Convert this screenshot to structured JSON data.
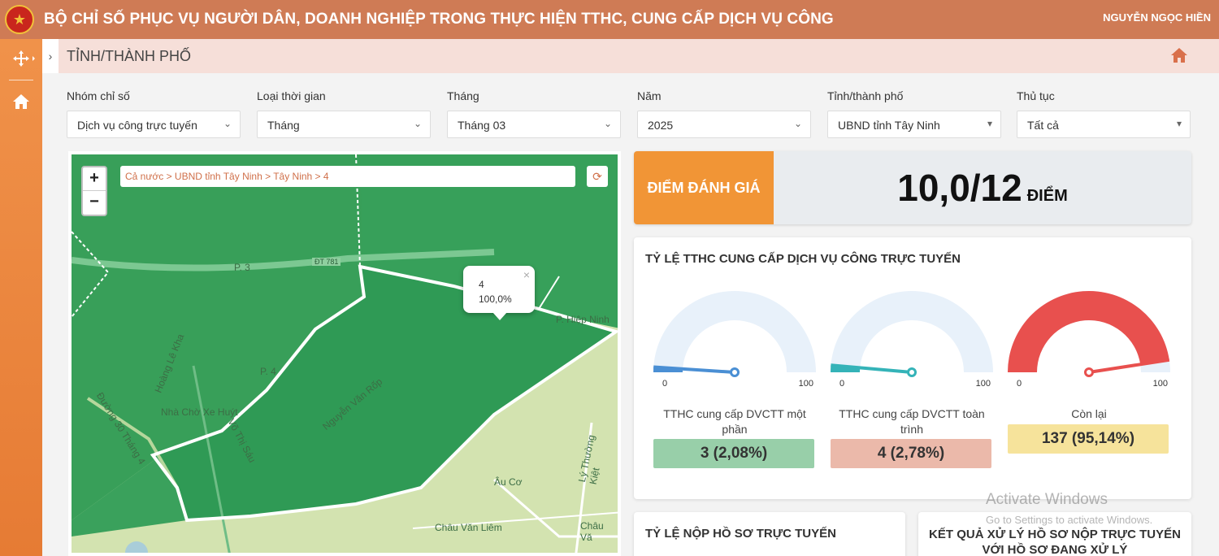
{
  "header": {
    "title": "BỘ CHỈ SỐ PHỤC VỤ NGƯỜI DÂN, DOANH NGHIỆP TRONG THỰC HIỆN TTHC, CUNG CẤP DỊCH VỤ CÔNG",
    "user": "NGUYỄN NGỌC HIỀN"
  },
  "breadcrumb": {
    "title": "TỈNH/THÀNH PHỐ"
  },
  "filters": [
    {
      "label": "Nhóm chỉ số",
      "value": "Dịch vụ công trực tuyến"
    },
    {
      "label": "Loại thời gian",
      "value": "Tháng"
    },
    {
      "label": "Tháng",
      "value": "Tháng 03"
    },
    {
      "label": "Năm",
      "value": "2025"
    },
    {
      "label": "Tỉnh/thành phố",
      "value": "UBND tỉnh Tây Ninh"
    },
    {
      "label": "Thủ tục",
      "value": "Tất cả"
    }
  ],
  "map": {
    "path": "Cả nước > UBND tỉnh Tây Ninh > Tây Ninh > 4",
    "zoom_in": "+",
    "zoom_out": "−",
    "popup": {
      "name": "4",
      "percent": "100,0%"
    },
    "labels": [
      "P. 3",
      "ĐT 781",
      "P. Hiệp Ninh",
      "Hoàng Lê Kha",
      "Nhà Chờ Xe Huýt",
      "Võ Thị Sáu",
      "Nguyễn Văn Rốp",
      "Đường 30 Tháng 4",
      "Lý Thường Kiệt",
      "Âu Cơ",
      "Châu Văn Liêm",
      "Châu Vă",
      "P. 4"
    ]
  },
  "score": {
    "label": "ĐIỂM ĐÁNH GIÁ",
    "value": "10,0/12",
    "unit": "ĐIỂM"
  },
  "online_rate": {
    "title": "TỶ LỆ TTHC CUNG CẤP DỊCH VỤ CÔNG TRỰC TUYẾN",
    "gauges": [
      {
        "caption": "TTHC cung cấp DVCTT một phần",
        "value": "3 (2,08%)",
        "percent": 2.08,
        "min": "0",
        "max": "100",
        "color": "#4a8fd4",
        "box_color": "#98cfa9"
      },
      {
        "caption": "TTHC cung cấp DVCTT toàn trình",
        "value": "4 (2,78%)",
        "percent": 2.78,
        "min": "0",
        "max": "100",
        "color": "#34b3b8",
        "box_color": "#ebb9aa"
      },
      {
        "caption": "Còn lại",
        "value": "137 (95,14%)",
        "percent": 95.14,
        "min": "0",
        "max": "100",
        "color": "#e8504e",
        "box_color": "#f6e39b"
      }
    ]
  },
  "bottom_panels": {
    "left_title": "TỶ LỆ NỘP HỒ SƠ TRỰC TUYẾN",
    "right_title": "KẾT QUẢ XỬ LÝ HỒ SƠ NỘP TRỰC TUYẾN VỚI HỒ SƠ ĐANG XỬ LÝ"
  },
  "watermark": {
    "line1": "Activate Windows",
    "line2": "Go to Settings to activate Windows."
  }
}
